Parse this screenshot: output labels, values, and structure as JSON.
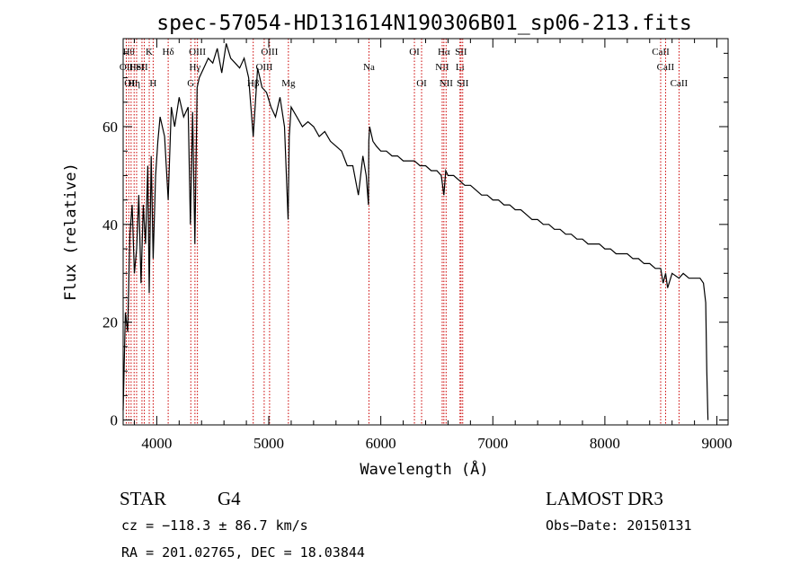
{
  "chart_data": {
    "type": "line",
    "title": "spec-57054-HD131614N190306B01_sp06-213.fits",
    "xlabel": "Wavelength (Å)",
    "ylabel": "Flux (relative)",
    "xlim": [
      3700,
      9100
    ],
    "ylim": [
      -1,
      78
    ],
    "xticks": [
      4000,
      5000,
      6000,
      7000,
      8000,
      9000
    ],
    "yticks": [
      0,
      20,
      40,
      60
    ],
    "series": [
      {
        "name": "flux",
        "x": [
          3700,
          3720,
          3740,
          3760,
          3780,
          3800,
          3820,
          3840,
          3860,
          3880,
          3900,
          3920,
          3933,
          3950,
          3968,
          3990,
          4010,
          4030,
          4050,
          4070,
          4102,
          4130,
          4160,
          4200,
          4240,
          4280,
          4300,
          4320,
          4340,
          4360,
          4380,
          4420,
          4460,
          4500,
          4540,
          4580,
          4620,
          4660,
          4700,
          4740,
          4780,
          4820,
          4861,
          4900,
          4940,
          4980,
          5020,
          5060,
          5100,
          5140,
          5172,
          5183,
          5200,
          5250,
          5300,
          5350,
          5400,
          5450,
          5500,
          5550,
          5600,
          5650,
          5700,
          5750,
          5800,
          5840,
          5870,
          5890,
          5893,
          5900,
          5930,
          5960,
          6000,
          6050,
          6100,
          6150,
          6200,
          6250,
          6300,
          6350,
          6400,
          6450,
          6500,
          6540,
          6563,
          6580,
          6600,
          6650,
          6700,
          6750,
          6800,
          6850,
          6900,
          6950,
          7000,
          7050,
          7100,
          7150,
          7200,
          7250,
          7300,
          7350,
          7400,
          7450,
          7500,
          7550,
          7600,
          7650,
          7700,
          7750,
          7800,
          7850,
          7900,
          7950,
          8000,
          8050,
          8100,
          8150,
          8200,
          8250,
          8300,
          8350,
          8400,
          8450,
          8498,
          8520,
          8542,
          8560,
          8600,
          8662,
          8700,
          8750,
          8800,
          8850,
          8880,
          8900,
          8910,
          8920
        ],
        "values": [
          2,
          22,
          18,
          38,
          44,
          30,
          35,
          46,
          28,
          44,
          36,
          52,
          26,
          54,
          33,
          50,
          57,
          62,
          60,
          58,
          45,
          64,
          60,
          66,
          62,
          64,
          40,
          63,
          36,
          68,
          70,
          72,
          74,
          73,
          76,
          71,
          77,
          74,
          73,
          72,
          74,
          70,
          58,
          72,
          68,
          67,
          64,
          62,
          66,
          60,
          41,
          58,
          64,
          62,
          60,
          61,
          60,
          58,
          59,
          57,
          56,
          55,
          52,
          52,
          46,
          54,
          50,
          44,
          57,
          60,
          57,
          56,
          55,
          55,
          54,
          54,
          53,
          53,
          53,
          52,
          52,
          51,
          51,
          50,
          46,
          51,
          50,
          50,
          49,
          48,
          48,
          47,
          46,
          46,
          45,
          45,
          44,
          44,
          43,
          43,
          42,
          41,
          41,
          40,
          40,
          39,
          39,
          38,
          38,
          37,
          37,
          36,
          36,
          36,
          35,
          35,
          34,
          34,
          34,
          33,
          33,
          32,
          32,
          31,
          31,
          28,
          30,
          27,
          30,
          29,
          30,
          29,
          29,
          29,
          28,
          24,
          10,
          0
        ]
      }
    ],
    "spectral_lines": [
      {
        "wavelength": 3728,
        "label": "OII",
        "row": 2
      },
      {
        "wavelength": 3750,
        "label": "Hθ",
        "row": 1
      },
      {
        "wavelength": 3771,
        "label": "OII",
        "row": 3
      },
      {
        "wavelength": 3798,
        "label": "Hη",
        "row": 3
      },
      {
        "wavelength": 3820,
        "label": "HeI",
        "row": 2
      },
      {
        "wavelength": 3868,
        "label": "SII",
        "row": 2
      },
      {
        "wavelength": 3889,
        "label": "",
        "row": 0
      },
      {
        "wavelength": 3933,
        "label": "K",
        "row": 1
      },
      {
        "wavelength": 3968,
        "label": "H",
        "row": 3
      },
      {
        "wavelength": 4102,
        "label": "Hδ",
        "row": 1
      },
      {
        "wavelength": 4304,
        "label": "G",
        "row": 3
      },
      {
        "wavelength": 4341,
        "label": "Hγ",
        "row": 2
      },
      {
        "wavelength": 4363,
        "label": "OIII",
        "row": 1
      },
      {
        "wavelength": 4861,
        "label": "Hβ",
        "row": 3
      },
      {
        "wavelength": 4959,
        "label": "OIII",
        "row": 2
      },
      {
        "wavelength": 5007,
        "label": "OIII",
        "row": 1
      },
      {
        "wavelength": 5175,
        "label": "Mg",
        "row": 3
      },
      {
        "wavelength": 5894,
        "label": "Na",
        "row": 2
      },
      {
        "wavelength": 6300,
        "label": "OI",
        "row": 1
      },
      {
        "wavelength": 6364,
        "label": "OI",
        "row": 3
      },
      {
        "wavelength": 6548,
        "label": "NII",
        "row": 2
      },
      {
        "wavelength": 6563,
        "label": "Hα",
        "row": 1
      },
      {
        "wavelength": 6583,
        "label": "NII",
        "row": 3
      },
      {
        "wavelength": 6707,
        "label": "Li",
        "row": 2
      },
      {
        "wavelength": 6716,
        "label": "SII",
        "row": 1
      },
      {
        "wavelength": 6731,
        "label": "SII",
        "row": 3
      },
      {
        "wavelength": 8498,
        "label": "CaII",
        "row": 1
      },
      {
        "wavelength": 8542,
        "label": "CaII",
        "row": 2
      },
      {
        "wavelength": 8662,
        "label": "CaII",
        "row": 3
      }
    ]
  },
  "info": {
    "class": "STAR",
    "subclass": "G4",
    "survey": "LAMOST DR3",
    "cz": "cz = −118.3 ± 86.7 km/s",
    "obs_date": "Obs−Date: 20150131",
    "coords": "RA = 201.02765, DEC =  18.03844"
  },
  "colors": {
    "line_markers": "#cc0000",
    "spectrum": "#000000",
    "frame": "#000000"
  }
}
